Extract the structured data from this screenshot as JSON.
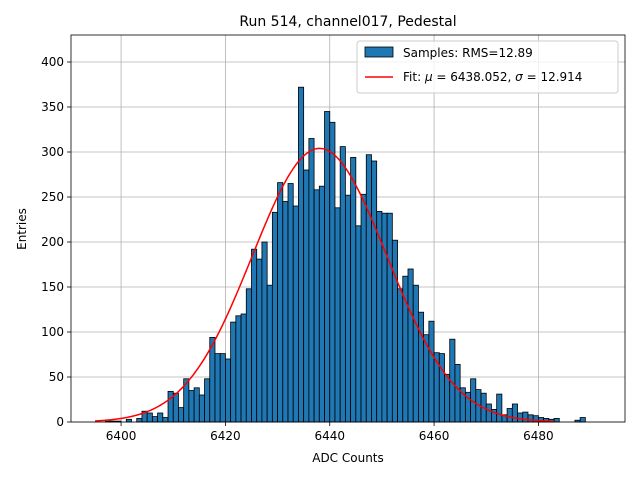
{
  "chart_data": {
    "type": "bar",
    "title": "Run 514, channel017, Pedestal",
    "xlabel": "ADC Counts",
    "ylabel": "Entries",
    "xlim": [
      6390.4,
      6496.6
    ],
    "ylim": [
      0,
      430
    ],
    "xticks": [
      6400,
      6420,
      6440,
      6460,
      6480
    ],
    "yticks": [
      0,
      50,
      100,
      150,
      200,
      250,
      300,
      350,
      400
    ],
    "grid": true,
    "legend_position": "upper right",
    "bin_edges_start": 6395,
    "bin_width": 1,
    "series": [
      {
        "name": "Samples: RMS=12.89",
        "kind": "histogram",
        "color": "#1f77b4",
        "edgecolor": "#000000",
        "values": [
          0,
          0,
          1,
          1,
          1,
          0,
          3,
          0,
          4,
          12,
          10,
          6,
          10,
          5,
          34,
          32,
          16,
          48,
          35,
          38,
          30,
          48,
          94,
          76,
          76,
          70,
          111,
          118,
          120,
          148,
          192,
          181,
          200,
          152,
          233,
          266,
          245,
          265,
          240,
          372,
          280,
          315,
          258,
          262,
          345,
          333,
          238,
          306,
          252,
          294,
          218,
          253,
          297,
          290,
          234,
          232,
          232,
          202,
          148,
          162,
          170,
          152,
          122,
          97,
          112,
          77,
          76,
          53,
          92,
          64,
          38,
          33,
          48,
          36,
          32,
          20,
          14,
          31,
          8,
          15,
          20,
          10,
          11,
          8,
          7,
          5,
          4,
          3,
          4,
          0,
          0,
          0,
          2,
          5
        ]
      },
      {
        "name": "Fit: μ = 6438.052, σ = 12.914",
        "kind": "gaussian_fit",
        "color": "#ff0000",
        "mu": 6438.052,
        "sigma": 12.914,
        "amplitude": 304,
        "x_range": [
          6395,
          6483
        ]
      }
    ],
    "legend": [
      {
        "label_text": "Samples: RMS=12.89",
        "marker": "patch"
      },
      {
        "label_prefix": "Fit: ",
        "mu_symbol": "μ",
        "mid": " = 6438.052, ",
        "sigma_symbol": "σ",
        "suffix": " = 12.914",
        "marker": "line"
      }
    ]
  }
}
